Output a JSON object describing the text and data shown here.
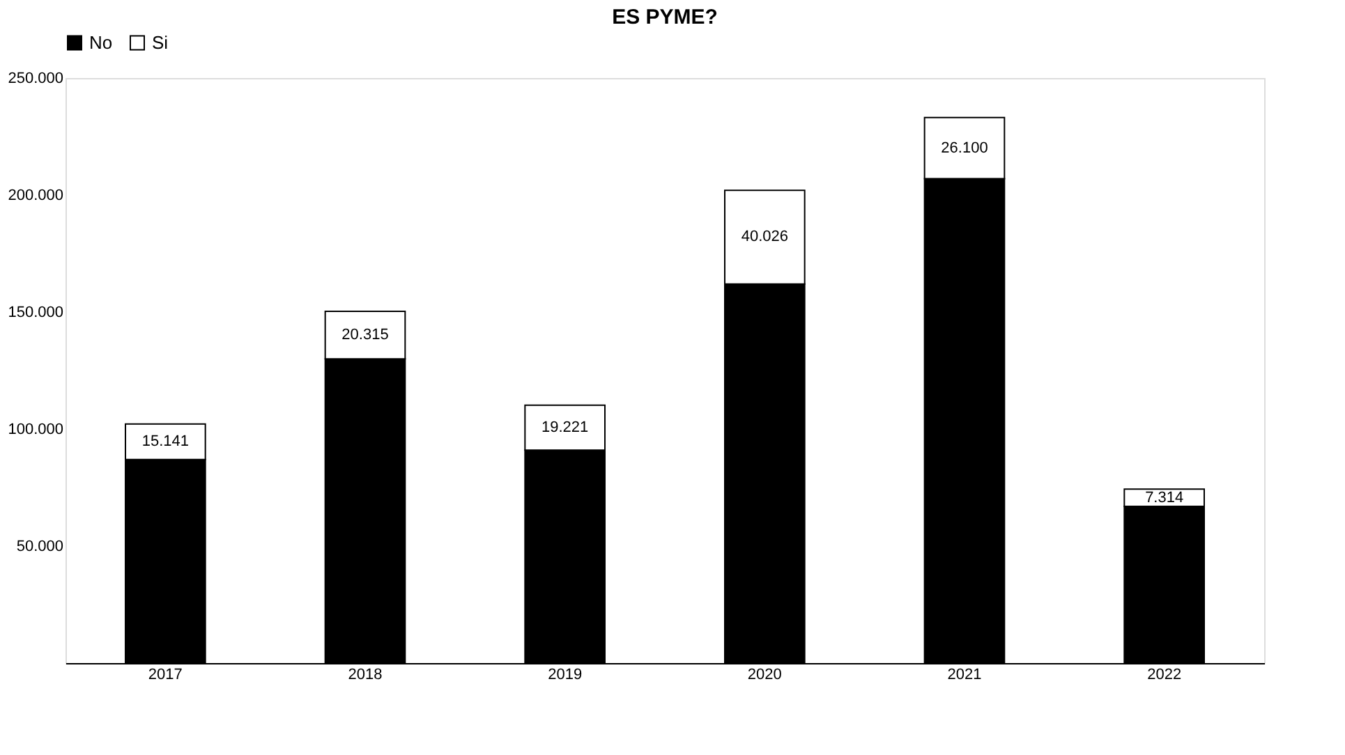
{
  "chart_data": {
    "type": "bar",
    "title": "ES PYME?",
    "stacked": true,
    "legend": "top",
    "grid": false,
    "categories": [
      "2017",
      "2018",
      "2019",
      "2020",
      "2021",
      "2022"
    ],
    "series": [
      {
        "name": "No",
        "color": "#000000",
        "values": [
          87000,
          130000,
          91000,
          162000,
          207000,
          67000
        ]
      },
      {
        "name": "Si",
        "color": "#ffffff",
        "values": [
          15141,
          20315,
          19221,
          40026,
          26100,
          7314
        ],
        "value_labels": [
          "15.141",
          "20.315",
          "19.221",
          "40.026",
          "26.100",
          "7.314"
        ]
      }
    ],
    "ylim": [
      0,
      250000
    ],
    "yticks": [
      {
        "value": 50000,
        "label": "50.000"
      },
      {
        "value": 100000,
        "label": "100.000"
      },
      {
        "value": 150000,
        "label": "150.000"
      },
      {
        "value": 200000,
        "label": "200.000"
      },
      {
        "value": 250000,
        "label": "250.000"
      }
    ]
  }
}
